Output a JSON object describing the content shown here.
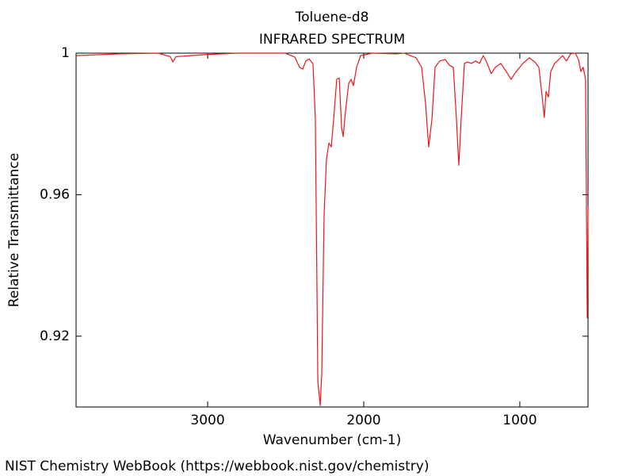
{
  "chart_data": {
    "type": "line",
    "title": "Toluene-d8",
    "subtitle": "INFRARED SPECTRUM",
    "x_label": "Wavenumber (cm-1)",
    "y_label": "Relative Transmittance",
    "footer": "NIST Chemistry WebBook (https://webbook.nist.gov/chemistry)",
    "color": "#e8161b",
    "xlim": [
      3843,
      563
    ],
    "ylim": [
      0.9,
      1.0
    ],
    "xticks": [
      3000,
      2000,
      1000
    ],
    "yticks": [
      0.92,
      0.96,
      1
    ],
    "x": [
      3843,
      3569,
      3315,
      3239,
      3223,
      3203,
      3112,
      3010,
      2807,
      2503,
      2442,
      2411,
      2391,
      2371,
      2350,
      2325,
      2310,
      2294,
      2279,
      2269,
      2254,
      2239,
      2223,
      2208,
      2193,
      2173,
      2157,
      2142,
      2132,
      2117,
      2096,
      2081,
      2066,
      2046,
      2020,
      1944,
      1792,
      1741,
      1665,
      1629,
      1604,
      1584,
      1563,
      1543,
      1513,
      1477,
      1452,
      1426,
      1406,
      1391,
      1376,
      1355,
      1335,
      1310,
      1284,
      1259,
      1234,
      1213,
      1183,
      1157,
      1122,
      1081,
      1056,
      1030,
      980,
      939,
      904,
      878,
      858,
      843,
      832,
      817,
      802,
      777,
      751,
      726,
      701,
      675,
      645,
      624,
      609,
      594,
      579,
      568,
      563
    ],
    "values": [
      0.9993,
      0.9998,
      1.0,
      0.999,
      0.9975,
      0.999,
      0.9993,
      0.9996,
      1.0,
      1.0,
      0.9989,
      0.996,
      0.9955,
      0.9978,
      0.9984,
      0.997,
      0.9813,
      0.9072,
      0.9004,
      0.9094,
      0.9544,
      0.97,
      0.9746,
      0.9735,
      0.9813,
      0.9926,
      0.993,
      0.979,
      0.9764,
      0.9836,
      0.9915,
      0.9926,
      0.9908,
      0.996,
      0.9993,
      1.0,
      0.9998,
      1.0,
      0.9987,
      0.996,
      0.9858,
      0.9735,
      0.9813,
      0.996,
      0.9978,
      0.9982,
      0.9966,
      0.996,
      0.9813,
      0.9683,
      0.9813,
      0.9971,
      0.9975,
      0.9971,
      0.9978,
      0.9971,
      0.9993,
      0.9975,
      0.9942,
      0.996,
      0.9971,
      0.9944,
      0.9926,
      0.9944,
      0.9971,
      0.9987,
      0.9975,
      0.996,
      0.9881,
      0.9818,
      0.9892,
      0.9876,
      0.9948,
      0.9971,
      0.9982,
      0.9993,
      0.9978,
      0.9998,
      1.0,
      0.9982,
      0.9948,
      0.996,
      0.9926,
      0.9252,
      0.9566
    ]
  }
}
